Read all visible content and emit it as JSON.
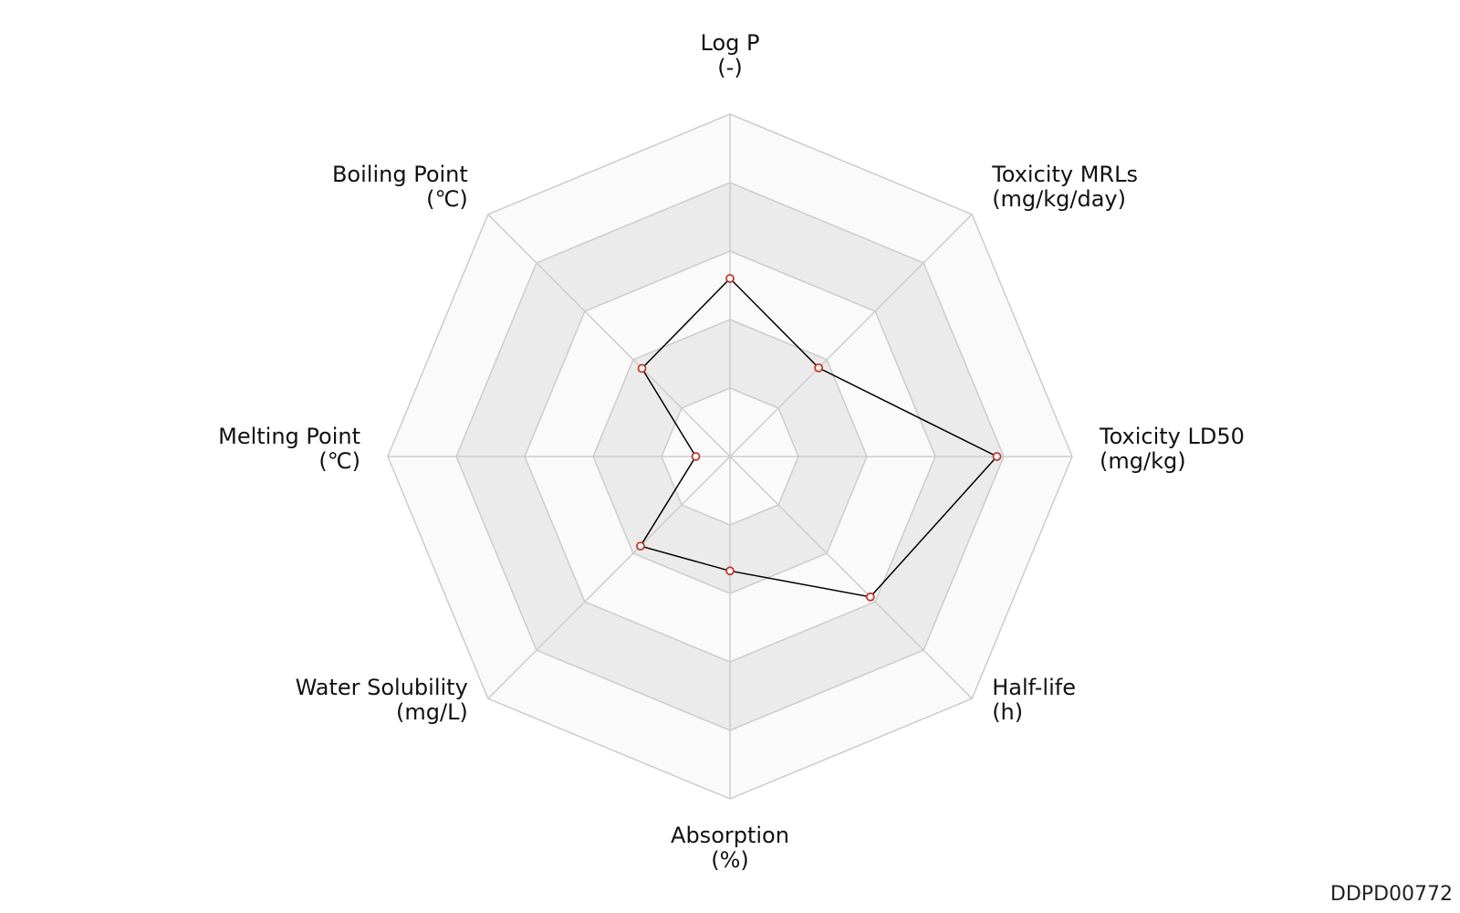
{
  "chart_data": {
    "type": "radar",
    "title": "",
    "axes": [
      {
        "name": "Log P",
        "unit": "(-)"
      },
      {
        "name": "Toxicity MRLs",
        "unit": "(mg/kg/day)"
      },
      {
        "name": "Toxicity LD50",
        "unit": "(mg/kg)"
      },
      {
        "name": "Half-life",
        "unit": "(h)"
      },
      {
        "name": "Absorption",
        "unit": "(%)"
      },
      {
        "name": "Water Solubility",
        "unit": "(mg/L)"
      },
      {
        "name": "Melting Point",
        "unit": "(℃)"
      },
      {
        "name": "Boiling Point",
        "unit": "(℃)"
      }
    ],
    "scale": {
      "min": 0,
      "max": 5,
      "rings": 5,
      "ticks_shown": false
    },
    "series": [
      {
        "values": [
          2.6,
          1.83,
          3.9,
          2.9,
          1.67,
          1.85,
          0.5,
          1.82
        ]
      }
    ],
    "grid": true,
    "legend": "none"
  },
  "footer": {
    "id_text": "DDPD00772"
  },
  "colors": {
    "line": "#000000",
    "marker_edge": "#c0392b",
    "marker_fill": "#ffffff",
    "grid_line": "#cccccc",
    "band_light": "#fafafa",
    "band_dark": "#ebebeb"
  }
}
